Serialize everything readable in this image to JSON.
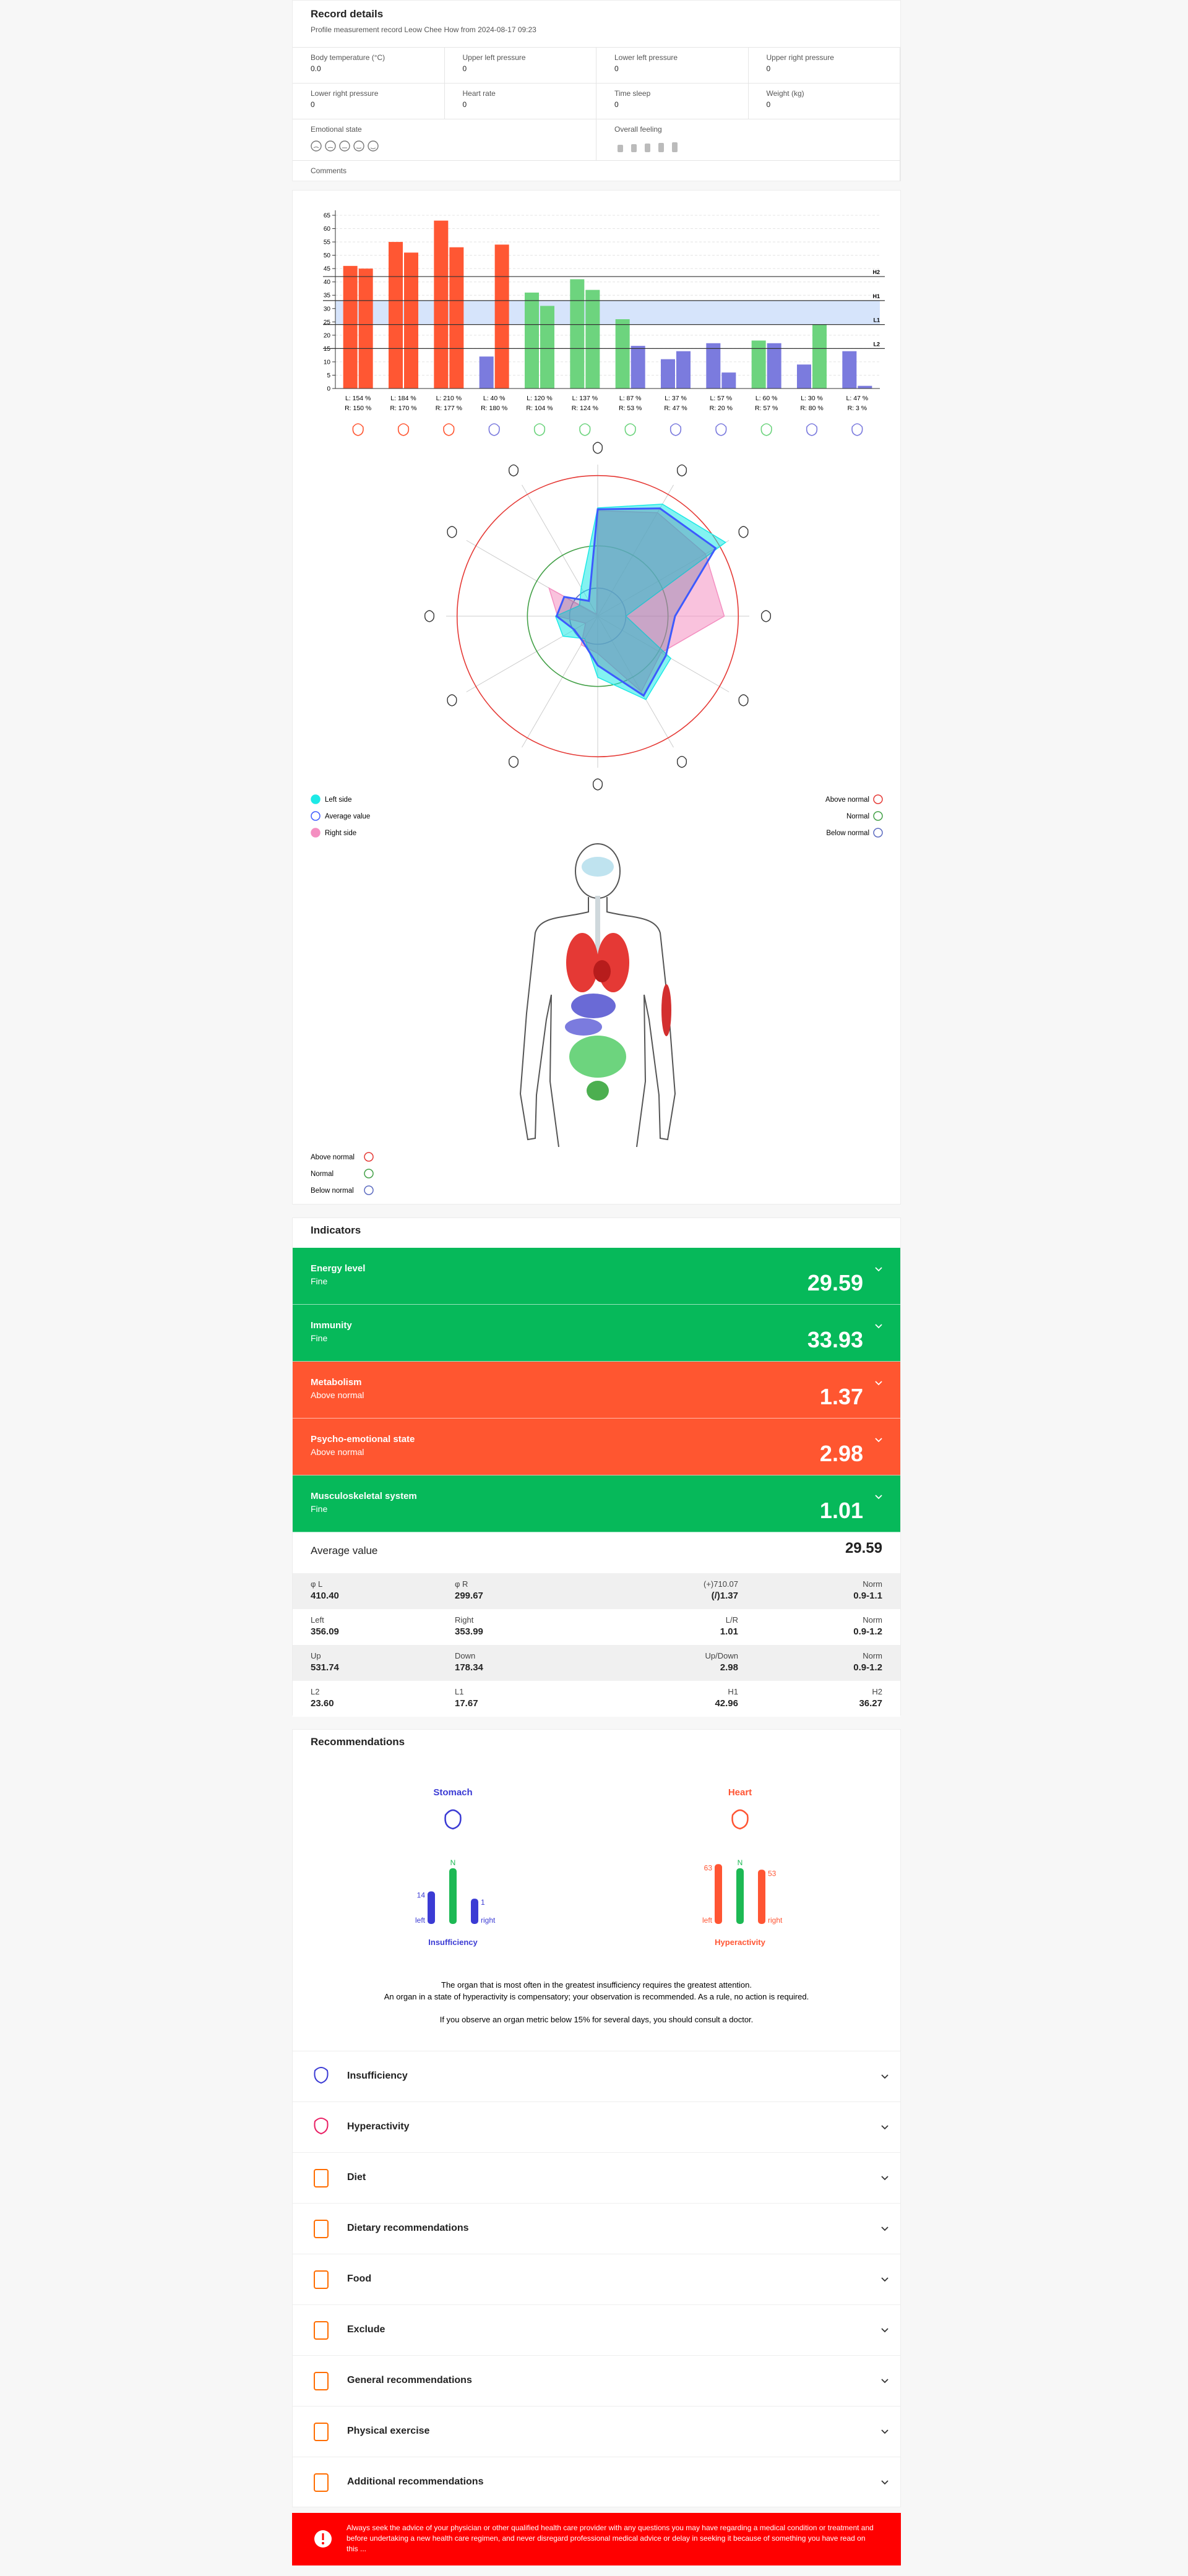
{
  "record": {
    "title": "Record details",
    "subtitle": "Profile measurement record Leow Chee How from 2024-08-17 09:23",
    "fields": [
      {
        "label": "Body temperature (°C)",
        "value": "0.0"
      },
      {
        "label": "Upper left pressure",
        "value": "0"
      },
      {
        "label": "Lower left pressure",
        "value": "0"
      },
      {
        "label": "Upper right pressure",
        "value": "0"
      },
      {
        "label": "Lower right pressure",
        "value": "0"
      },
      {
        "label": "Heart rate",
        "value": "0"
      },
      {
        "label": "Time sleep",
        "value": "0"
      },
      {
        "label": "Weight (kg)",
        "value": "0"
      }
    ],
    "emotional_state": "Emotional state",
    "overall_feeling": "Overall feeling",
    "comments": "Comments"
  },
  "chart_data": [
    {
      "type": "bar",
      "categories": [
        null,
        null,
        null,
        null,
        null,
        null,
        null,
        null,
        null,
        null,
        null,
        null
      ],
      "series": [
        {
          "values": [
            46,
            55,
            63,
            12,
            36,
            41,
            26,
            11,
            17,
            18,
            9,
            14
          ],
          "colors": [
            "#ff5733",
            "#ff5733",
            "#ff5733",
            "#7b7bde",
            "#6dd47e",
            "#6dd47e",
            "#6dd47e",
            "#7b7bde",
            "#7b7bde",
            "#6dd47e",
            "#7b7bde",
            "#7b7bde"
          ]
        },
        {
          "values": [
            45,
            51,
            53,
            54,
            31,
            37,
            16,
            14,
            6,
            17,
            24,
            1
          ],
          "colors": [
            "#ff5733",
            "#ff5733",
            "#ff5733",
            "#ff5733",
            "#6dd47e",
            "#6dd47e",
            "#7b7bde",
            "#7b7bde",
            "#7b7bde",
            "#7b7bde",
            "#6dd47e",
            "#7b7bde"
          ]
        }
      ],
      "left_labels": [
        "L: 154 %",
        "L: 184 %",
        "L: 210 %",
        "L: 40 %",
        "L: 120 %",
        "L: 137 %",
        "L: 87 %",
        "L: 37 %",
        "L: 57 %",
        "L: 60 %",
        "L: 30 %",
        "L: 47 %"
      ],
      "right_labels": [
        "R: 150 %",
        "R: 170 %",
        "R: 177 %",
        "R: 180 %",
        "R: 104 %",
        "R: 124 %",
        "R: 53 %",
        "R: 47 %",
        "R: 20 %",
        "R: 57 %",
        "R: 80 %",
        "R: 3 %"
      ],
      "lines": [
        {
          "label": "H2",
          "value": 42
        },
        {
          "label": "H1",
          "value": 33
        },
        {
          "label": "L1",
          "value": 24
        },
        {
          "label": "L2",
          "value": 15
        }
      ],
      "band_color": "#d6e4fb",
      "ylim": [
        0,
        65
      ],
      "yticks": [
        0,
        5,
        10,
        15,
        20,
        25,
        30,
        35,
        40,
        45,
        50,
        55,
        60,
        65
      ],
      "grid": true
    },
    {
      "type": "radar",
      "rlim": [
        0,
        220
      ],
      "rings": [
        {
          "name": "Above normal",
          "value": 200,
          "color": "#e53935"
        },
        {
          "name": "Normal",
          "value": 100,
          "color": "#43a047"
        },
        {
          "name": "Below normal",
          "value": 40,
          "color": "#5c6bc0"
        }
      ],
      "series": [
        {
          "name": "Right side",
          "color": "#f48fc1",
          "values": [
            150,
            170,
            177,
            180,
            104,
            124,
            53,
            47,
            20,
            57,
            80,
            3
          ]
        },
        {
          "name": "Left side",
          "color": "#1de9e6",
          "values": [
            154,
            184,
            210,
            40,
            120,
            137,
            87,
            37,
            57,
            60,
            30,
            47
          ]
        },
        {
          "name": "Average value",
          "color": "#3d5afe",
          "values": [
            152,
            177,
            193.5,
            110,
            112,
            130.5,
            70,
            42,
            38.5,
            58.5,
            55,
            25
          ]
        }
      ]
    }
  ],
  "body_legend": [
    "Above normal",
    "Normal",
    "Below normal"
  ],
  "indicators": {
    "title": "Indicators",
    "items": [
      {
        "name": "Energy level",
        "status": "Fine",
        "value": "29.59",
        "color": "#06b95a"
      },
      {
        "name": "Immunity",
        "status": "Fine",
        "value": "33.93",
        "color": "#06b95a"
      },
      {
        "name": "Metabolism",
        "status": "Above normal",
        "value": "1.37",
        "color": "#ff5630"
      },
      {
        "name": "Psycho-emotional state",
        "status": "Above normal",
        "value": "2.98",
        "color": "#ff5630"
      },
      {
        "name": "Musculoskeletal system",
        "status": "Fine",
        "value": "1.01",
        "color": "#06b95a"
      }
    ],
    "average_label": "Average value",
    "average_value": "29.59",
    "table": [
      [
        {
          "label": "φ L",
          "value": "410.40"
        },
        {
          "label": "φ R",
          "value": "299.67"
        },
        {
          "label": "(+)710.07",
          "value": "(/)1.37"
        },
        {
          "label": "Norm",
          "value": "0.9-1.1"
        }
      ],
      [
        {
          "label": "Left",
          "value": "356.09"
        },
        {
          "label": "Right",
          "value": "353.99"
        },
        {
          "label": "L/R",
          "value": "1.01"
        },
        {
          "label": "Norm",
          "value": "0.9-1.2"
        }
      ],
      [
        {
          "label": "Up",
          "value": "531.74"
        },
        {
          "label": "Down",
          "value": "178.34"
        },
        {
          "label": "Up/Down",
          "value": "2.98"
        },
        {
          "label": "Norm",
          "value": "0.9-1.2"
        }
      ],
      [
        {
          "label": "L2",
          "value": "23.60"
        },
        {
          "label": "L1",
          "value": "17.67"
        },
        {
          "label": "H1",
          "value": "42.96"
        },
        {
          "label": "H2",
          "value": "36.27"
        }
      ]
    ]
  },
  "recommendations": {
    "title": "Recommendations",
    "organs": [
      {
        "name": "Stomach",
        "color": "#3b3bd4",
        "state": "Insufficiency",
        "left_value": 14,
        "right_value": 1,
        "left_label": "left",
        "right_label": "right",
        "norm_label": "N"
      },
      {
        "name": "Heart",
        "color": "#ff5533",
        "state": "Hyperactivity",
        "left_value": 63,
        "right_value": 53,
        "left_label": "left",
        "right_label": "right",
        "norm_label": "N"
      }
    ],
    "notes": [
      "The organ that is most often in the greatest insufficiency requires the greatest attention.",
      "An organ in a state of hyperactivity is compensatory; your observation is recommended. As a rule, no action is required.",
      "If you observe an organ metric below 15% for several days, you should consult a doctor."
    ],
    "sections": [
      "Insufficiency",
      "Hyperactivity",
      "Diet",
      "Dietary recommendations",
      "Food",
      "Exclude",
      "General recommendations",
      "Physical exercise",
      "Additional recommendations"
    ]
  },
  "disclaimer": "Always seek the advice of your physician or other qualified health care provider with any questions you may have regarding a medical condition or treatment and before undertaking a new health care regimen, and never disregard professional medical advice or delay in seeking it because of something you have read on this ..."
}
